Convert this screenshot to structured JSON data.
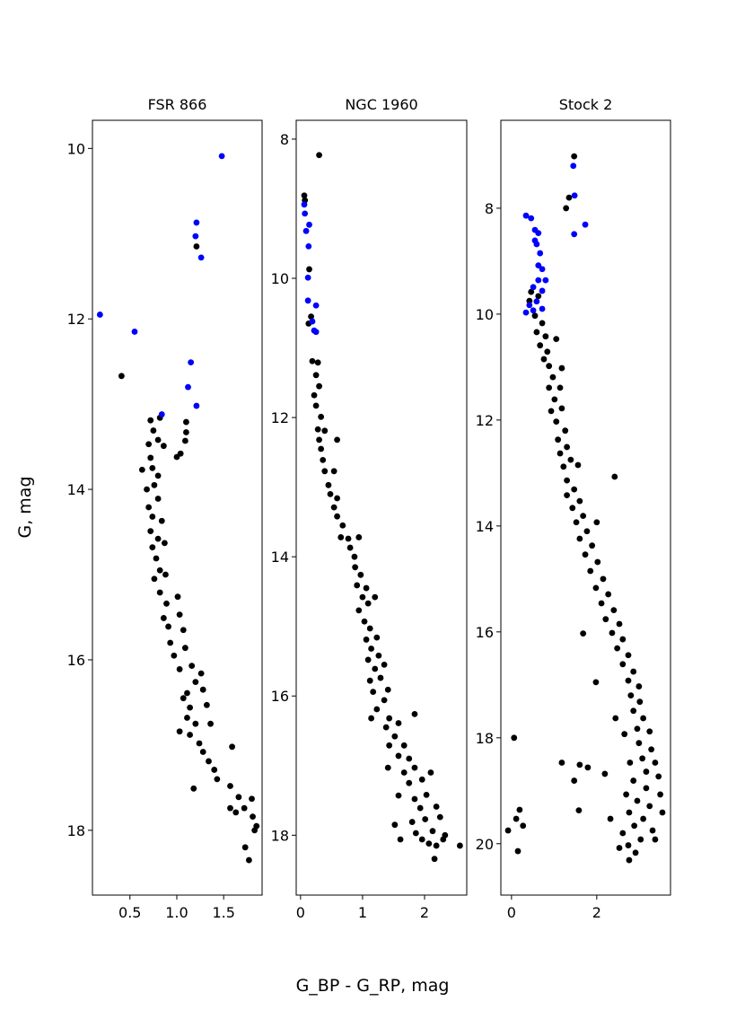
{
  "supxlabel": "G_BP - G_RP, mag",
  "supylabel": "G, mag",
  "chart_data": [
    {
      "type": "scatter",
      "title": "FSR 866",
      "inverted_y": true,
      "xlim": [
        0.1,
        1.91
      ],
      "ylim": [
        18.76,
        9.67
      ],
      "xticks": [
        0.5,
        {
          "value": 1,
          "label": "1.0"
        },
        1.5
      ],
      "yticks": [
        10,
        12,
        14,
        16,
        18
      ],
      "series": [
        {
          "color": "#000000",
          "x": [
            1.21,
            0.41,
            0.72,
            0.82,
            1.1,
            1.1,
            1.09,
            1.04,
            1.0,
            0.8,
            0.86,
            0.75,
            0.7,
            0.72,
            0.63,
            0.74,
            0.8,
            0.68,
            0.76,
            0.8,
            0.7,
            0.74,
            0.84,
            0.72,
            0.8,
            0.74,
            0.87,
            0.78,
            0.82,
            0.76,
            0.88,
            0.82,
            0.89,
            1.01,
            0.86,
            1.03,
            0.91,
            1.07,
            0.93,
            0.97,
            1.09,
            1.03,
            1.16,
            1.26,
            1.2,
            1.11,
            1.28,
            1.07,
            1.14,
            1.32,
            1.11,
            1.2,
            1.36,
            1.14,
            1.03,
            1.24,
            1.28,
            1.59,
            1.34,
            1.4,
            1.43,
            1.18,
            1.57,
            1.66,
            1.8,
            1.57,
            1.63,
            1.72,
            1.81,
            1.83,
            1.73,
            1.77,
            1.85
          ],
          "values": [
            11.15,
            12.67,
            13.19,
            13.16,
            13.21,
            13.33,
            13.43,
            13.58,
            13.62,
            13.42,
            13.49,
            13.31,
            13.47,
            13.63,
            13.77,
            13.75,
            13.84,
            14.0,
            13.95,
            14.11,
            14.21,
            14.32,
            14.37,
            14.49,
            14.58,
            14.68,
            14.63,
            14.81,
            14.95,
            15.05,
            15.0,
            15.21,
            15.34,
            15.26,
            15.51,
            15.47,
            15.61,
            15.65,
            15.8,
            15.95,
            15.86,
            16.11,
            16.07,
            16.16,
            16.26,
            16.39,
            16.35,
            16.45,
            16.56,
            16.53,
            16.68,
            16.75,
            16.75,
            16.88,
            16.84,
            16.98,
            17.08,
            17.02,
            17.19,
            17.29,
            17.4,
            17.51,
            17.48,
            17.61,
            17.63,
            17.74,
            17.79,
            17.74,
            17.84,
            18.0,
            18.2,
            18.35,
            17.95
          ]
        },
        {
          "color": "#0000ff",
          "x": [
            1.48,
            1.21,
            1.2,
            1.26,
            0.18,
            0.55,
            1.15,
            1.12,
            1.21,
            0.84
          ],
          "values": [
            10.09,
            10.87,
            11.03,
            11.28,
            11.95,
            12.15,
            12.51,
            12.8,
            13.02,
            13.12
          ]
        }
      ]
    },
    {
      "type": "scatter",
      "title": "NGC 1960",
      "inverted_y": true,
      "xlim": [
        -0.07,
        2.68
      ],
      "ylim": [
        18.86,
        7.73
      ],
      "xticks": [
        0,
        1,
        2
      ],
      "yticks": [
        8,
        10,
        12,
        14,
        16,
        18
      ],
      "series": [
        {
          "color": "#000000",
          "x": [
            0.3,
            0.06,
            0.07,
            0.14,
            0.17,
            0.13,
            0.19,
            0.28,
            0.25,
            0.3,
            0.22,
            0.25,
            0.33,
            0.28,
            0.39,
            0.3,
            0.59,
            0.33,
            0.36,
            0.54,
            0.39,
            0.45,
            0.48,
            0.59,
            0.54,
            0.59,
            0.68,
            0.65,
            0.77,
            0.8,
            0.87,
            0.94,
            0.88,
            0.97,
            0.91,
            1.06,
            1.0,
            1.09,
            0.94,
            1.2,
            1.03,
            1.12,
            1.06,
            1.23,
            1.14,
            1.09,
            1.26,
            1.2,
            1.35,
            1.29,
            1.12,
            1.17,
            1.41,
            1.35,
            1.23,
            1.14,
            1.43,
            1.38,
            1.58,
            1.84,
            1.52,
            1.43,
            1.67,
            1.58,
            1.75,
            1.41,
            1.67,
            1.84,
            1.75,
            1.96,
            2.1,
            1.58,
            1.84,
            2.03,
            1.93,
            2.19,
            1.52,
            1.8,
            2.01,
            2.25,
            1.86,
            2.13,
            1.61,
            1.96,
            2.33,
            2.07,
            2.19,
            2.57,
            2.16,
            2.3
          ],
          "values": [
            8.23,
            8.81,
            8.88,
            9.87,
            10.55,
            10.65,
            11.19,
            11.21,
            11.39,
            11.55,
            11.68,
            11.83,
            11.99,
            12.17,
            12.19,
            12.32,
            12.32,
            12.45,
            12.61,
            12.77,
            12.77,
            12.97,
            13.1,
            13.16,
            13.29,
            13.42,
            13.55,
            13.72,
            13.74,
            13.87,
            14.0,
            13.72,
            14.15,
            14.26,
            14.41,
            14.45,
            14.58,
            14.67,
            14.77,
            14.58,
            14.93,
            15.03,
            15.19,
            15.16,
            15.32,
            15.48,
            15.42,
            15.61,
            15.55,
            15.74,
            15.78,
            15.94,
            15.91,
            16.06,
            16.19,
            16.32,
            16.32,
            16.45,
            16.39,
            16.26,
            16.58,
            16.71,
            16.71,
            16.86,
            16.9,
            17.03,
            17.1,
            17.03,
            17.25,
            17.2,
            17.1,
            17.43,
            17.48,
            17.42,
            17.61,
            17.59,
            17.85,
            17.81,
            17.77,
            17.74,
            17.97,
            17.94,
            18.06,
            18.06,
            18.0,
            18.12,
            18.15,
            18.15,
            18.34,
            18.06
          ]
        },
        {
          "color": "#0000ff",
          "x": [
            0.06,
            0.07,
            0.14,
            0.09,
            0.13,
            0.12,
            0.12,
            0.25,
            0.19,
            0.22,
            0.25
          ],
          "values": [
            8.94,
            9.07,
            9.23,
            9.32,
            9.54,
            9.99,
            10.32,
            10.39,
            10.62,
            10.75,
            10.77
          ]
        }
      ]
    },
    {
      "type": "scatter",
      "title": "Stock 2",
      "inverted_y": true,
      "xlim": [
        -0.25,
        3.73
      ],
      "ylim": [
        20.97,
        6.34
      ],
      "xticks": [
        0,
        2
      ],
      "yticks": [
        8,
        10,
        12,
        14,
        16,
        18,
        20
      ],
      "series": [
        {
          "color": "#000000",
          "x": [
            1.47,
            1.35,
            1.28,
            0.46,
            0.42,
            0.63,
            0.55,
            0.72,
            0.59,
            0.8,
            1.05,
            0.67,
            0.84,
            0.76,
            0.88,
            1.18,
            0.97,
            0.88,
            1.14,
            1.01,
            0.93,
            1.18,
            1.05,
            1.26,
            1.09,
            1.3,
            1.14,
            1.39,
            1.22,
            1.56,
            1.3,
            2.42,
            1.47,
            1.3,
            1.6,
            1.43,
            1.68,
            1.52,
            2.0,
            1.77,
            1.6,
            1.89,
            1.73,
            2.02,
            1.85,
            2.15,
            1.98,
            2.27,
            2.11,
            2.4,
            1.68,
            2.21,
            2.53,
            2.36,
            2.61,
            2.48,
            2.74,
            2.61,
            2.86,
            2.74,
            1.98,
            2.99,
            2.8,
            3.01,
            2.44,
            2.86,
            3.09,
            2.95,
            3.24,
            2.65,
            2.99,
            3.28,
            3.07,
            3.37,
            2.78,
            3.16,
            2.19,
            3.45,
            2.86,
            3.16,
            2.69,
            3.49,
            2.95,
            3.24,
            2.76,
            3.09,
            3.54,
            2.32,
            2.88,
            3.31,
            2.61,
            3.03,
            3.37,
            2.74,
            2.53,
            2.91,
            2.76,
            1.58,
            1.18,
            1.6,
            1.47,
            1.79,
            0.06,
            0.19,
            0.27,
            0.11,
            -0.08,
            0.15
          ],
          "values": [
            7.02,
            7.8,
            8.0,
            9.58,
            9.75,
            9.66,
            10.03,
            10.17,
            10.34,
            10.42,
            10.47,
            10.59,
            10.71,
            10.85,
            10.98,
            11.02,
            11.19,
            11.39,
            11.39,
            11.61,
            11.83,
            11.78,
            12.03,
            12.2,
            12.37,
            12.51,
            12.63,
            12.75,
            12.88,
            12.85,
            13.14,
            13.07,
            13.31,
            13.42,
            13.53,
            13.66,
            13.81,
            13.93,
            13.93,
            14.1,
            14.24,
            14.37,
            14.54,
            14.68,
            14.85,
            15.0,
            15.17,
            15.29,
            15.46,
            15.59,
            16.03,
            15.76,
            15.85,
            16.02,
            16.14,
            16.31,
            16.44,
            16.61,
            16.75,
            16.92,
            16.95,
            17.03,
            17.2,
            17.32,
            17.63,
            17.49,
            17.63,
            17.83,
            17.88,
            17.93,
            18.1,
            18.22,
            18.39,
            18.47,
            18.47,
            18.64,
            18.68,
            18.73,
            18.81,
            18.95,
            19.07,
            19.07,
            19.19,
            19.29,
            19.41,
            19.53,
            19.41,
            19.53,
            19.66,
            19.75,
            19.8,
            19.92,
            19.92,
            20.03,
            20.08,
            20.17,
            20.31,
            19.37,
            18.47,
            18.51,
            18.81,
            18.56,
            18.0,
            19.36,
            19.66,
            19.53,
            19.75,
            20.14
          ]
        },
        {
          "color": "#0000ff",
          "x": [
            1.45,
            1.48,
            1.47,
            1.73,
            0.34,
            0.46,
            0.55,
            0.63,
            0.55,
            0.59,
            0.67,
            0.63,
            0.72,
            0.63,
            0.8,
            0.51,
            0.72,
            0.59,
            0.42,
            0.34,
            0.51,
            0.72
          ],
          "values": [
            7.2,
            7.76,
            8.49,
            8.31,
            8.14,
            8.19,
            8.41,
            8.47,
            8.61,
            8.68,
            8.85,
            9.08,
            9.15,
            9.36,
            9.36,
            9.49,
            9.56,
            9.76,
            9.83,
            9.97,
            9.93,
            9.9
          ]
        }
      ]
    }
  ]
}
